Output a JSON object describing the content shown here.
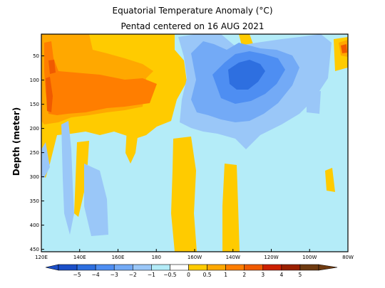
{
  "chart_data": {
    "type": "heatmap",
    "title": "Equatorial Temperature Anomaly (°C)",
    "subtitle": "Pentad centered on 16 AUG 2021",
    "ylabel": "Depth (meter)",
    "xlabel": "",
    "x_ticks": [
      "120E",
      "140E",
      "160E",
      "180",
      "160W",
      "140W",
      "120W",
      "100W",
      "80W"
    ],
    "x_tick_lon": [
      120,
      140,
      160,
      180,
      200,
      220,
      240,
      260,
      280
    ],
    "y_ticks": [
      50,
      100,
      150,
      200,
      250,
      300,
      350,
      400,
      450
    ],
    "xlim": [
      120,
      280
    ],
    "ylim": [
      455,
      5
    ],
    "colorbar": {
      "labels": [
        "−5",
        "−4",
        "−3",
        "−2",
        "−1",
        "−0.5",
        "0",
        "0.5",
        "1",
        "2",
        "3",
        "4",
        "5"
      ],
      "colors": [
        "#1c4fc8",
        "#2e6fe0",
        "#4e8ef2",
        "#73aaf6",
        "#9ac7f8",
        "#b4ecf8",
        "#ffffff",
        "#ffcb00",
        "#ffa800",
        "#ff7e00",
        "#f05a00",
        "#cc2000",
        "#9a2000",
        "#6e3a10"
      ]
    },
    "anomaly_field": {
      "description_units": "degC",
      "regions": [
        {
          "lon": [
            122,
            212
          ],
          "depth": [
            10,
            175
          ],
          "level": "0.5 to 1"
        },
        {
          "lon": [
            123,
            188
          ],
          "depth": [
            80,
            160
          ],
          "level": "1 to 2"
        },
        {
          "lon": [
            122,
            130
          ],
          "depth": [
            30,
            105
          ],
          "level": "1 to 2"
        },
        {
          "lon": [
            123,
            127
          ],
          "depth": [
            95,
            145
          ],
          "level": "2 to 3"
        },
        {
          "lon": [
            199,
            240
          ],
          "depth": [
            25,
            210
          ],
          "level": "-1 to -0.5"
        },
        {
          "lon": [
            212,
            237
          ],
          "depth": [
            55,
            165
          ],
          "level": "-2 to -1"
        },
        {
          "lon": [
            220,
            234
          ],
          "depth": [
            70,
            135
          ],
          "level": "-3 to -2"
        },
        {
          "lon": [
            240,
            270
          ],
          "depth": [
            35,
            150
          ],
          "level": "-1 to -0.5"
        },
        {
          "lon": [
            193,
            208
          ],
          "depth": [
            195,
            455
          ],
          "level": "0.5 to 1"
        },
        {
          "lon": [
            217,
            226
          ],
          "depth": [
            240,
            455
          ],
          "level": "0.5 to 1"
        },
        {
          "lon": [
            276,
            280
          ],
          "depth": [
            30,
            80
          ],
          "level": "1 to 2"
        },
        {
          "lon": [
            129,
            140
          ],
          "depth": [
            170,
            330
          ],
          "level": "-1 to -0.5"
        },
        {
          "lon": [
            140,
            152
          ],
          "depth": [
            240,
            410
          ],
          "level": "-1 to -0.5"
        }
      ]
    }
  }
}
